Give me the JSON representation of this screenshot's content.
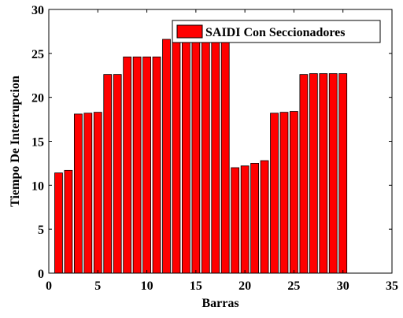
{
  "chart_data": {
    "type": "bar",
    "title": "",
    "xlabel": "Barras",
    "ylabel": "Tiempo De Interrupcion",
    "xlim": [
      0,
      35
    ],
    "ylim": [
      0,
      30
    ],
    "xticks": [
      0,
      5,
      10,
      15,
      20,
      25,
      30,
      35
    ],
    "yticks": [
      0,
      5,
      10,
      15,
      20,
      25,
      30
    ],
    "grid": false,
    "legend_position": "top-right",
    "series": [
      {
        "name": "SAIDI Con Seccionadores",
        "color": "#ff0000",
        "x": [
          1,
          2,
          3,
          4,
          5,
          6,
          7,
          8,
          9,
          10,
          11,
          12,
          13,
          14,
          15,
          16,
          17,
          18,
          19,
          20,
          21,
          22,
          23,
          24,
          25,
          26,
          27,
          28,
          29,
          30
        ],
        "values": [
          11.4,
          11.7,
          18.1,
          18.2,
          18.3,
          22.6,
          22.6,
          24.6,
          24.6,
          24.6,
          24.6,
          26.6,
          26.6,
          26.6,
          26.6,
          26.6,
          26.6,
          26.6,
          12.0,
          12.2,
          12.5,
          12.8,
          18.2,
          18.3,
          18.4,
          22.6,
          22.7,
          22.7,
          22.7,
          22.7
        ]
      }
    ]
  }
}
